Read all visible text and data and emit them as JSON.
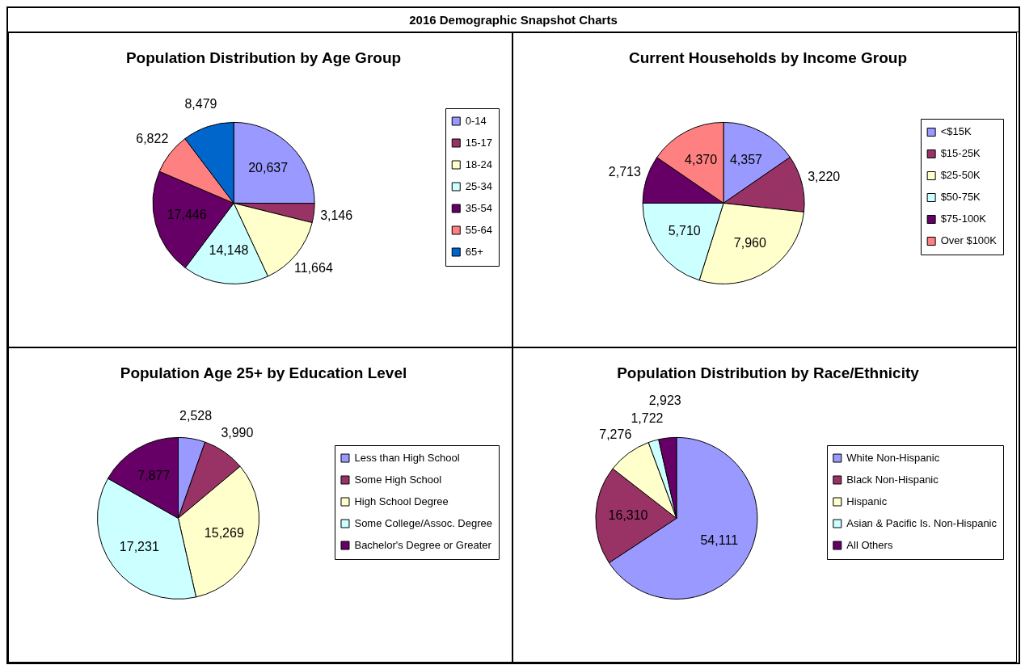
{
  "chart_data": [
    {
      "type": "pie",
      "title": "Population Distribution by Age Group",
      "annotations": [
        "2016 Demographic Snapshot Charts"
      ],
      "categories": [
        "0-14",
        "15-17",
        "18-24",
        "25-34",
        "35-54",
        "55-64",
        "65+"
      ],
      "values": [
        20637,
        3146,
        11664,
        14148,
        17446,
        6822,
        8479
      ],
      "value_labels": [
        "20,637",
        "3,146",
        "11,664",
        "14,148",
        "17,446",
        "6,822",
        "8,479"
      ],
      "colors": [
        "#9999ff",
        "#993366",
        "#ffffcc",
        "#ccffff",
        "#660066",
        "#ff8080",
        "#0066cc"
      ],
      "legend": "right"
    },
    {
      "type": "pie",
      "title": "Current Households by Income Group",
      "categories": [
        "<$15K",
        "$15-25K",
        "$25-50K",
        "$50-75K",
        "$75-100K",
        "Over $100K"
      ],
      "values": [
        4357,
        3220,
        7960,
        5710,
        2713,
        4370
      ],
      "value_labels": [
        "4,357",
        "3,220",
        "7,960",
        "5,710",
        "2,713",
        "4,370"
      ],
      "colors": [
        "#9999ff",
        "#993366",
        "#ffffcc",
        "#ccffff",
        "#660066",
        "#ff8080"
      ],
      "legend": "right"
    },
    {
      "type": "pie",
      "title": "Population Age 25+ by Education Level",
      "categories": [
        "Less than High School",
        "Some High School",
        "High School Degree",
        "Some College/Assoc. Degree",
        "Bachelor's Degree or Greater"
      ],
      "values": [
        2528,
        3990,
        15269,
        17231,
        7877
      ],
      "value_labels": [
        "2,528",
        "3,990",
        "15,269",
        "17,231",
        "7,877"
      ],
      "colors": [
        "#9999ff",
        "#993366",
        "#ffffcc",
        "#ccffff",
        "#660066"
      ],
      "legend": "right"
    },
    {
      "type": "pie",
      "title": "Population Distribution by Race/Ethnicity",
      "categories": [
        "White Non-Hispanic",
        "Black Non-Hispanic",
        "Hispanic",
        "Asian & Pacific Is. Non-Hispanic",
        "All Others"
      ],
      "values": [
        54111,
        16310,
        7276,
        1722,
        2923
      ],
      "value_labels": [
        "54,111",
        "16,310",
        "7,276",
        "1,722",
        "2,923"
      ],
      "colors": [
        "#9999ff",
        "#993366",
        "#ffffcc",
        "#ccffff",
        "#660066"
      ],
      "legend": "right"
    }
  ]
}
